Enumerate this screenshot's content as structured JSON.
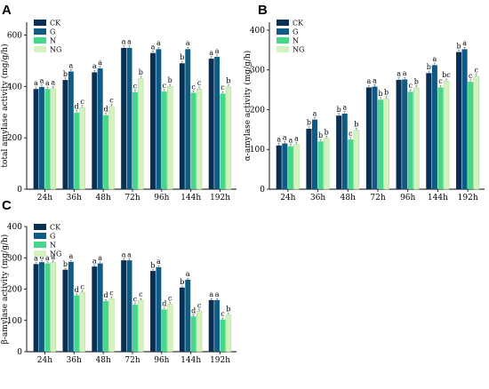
{
  "figure": {
    "colors": [
      "#0a2f55",
      "#0e5c85",
      "#45d88a",
      "#d3f2bd"
    ],
    "legend": [
      "CK",
      "G",
      "N",
      "NG"
    ]
  },
  "chart_data": [
    {
      "type": "bar",
      "panel": "A",
      "title": "",
      "xlabel": "",
      "ylabel": "total amylase activity (mg/g/h)",
      "ylim": [
        0,
        650
      ],
      "yticks": [
        0,
        200,
        400,
        600
      ],
      "legend_position": "top-left",
      "categories": [
        "24h",
        "36h",
        "48h",
        "72h",
        "96h",
        "144h",
        "192h"
      ],
      "series": [
        {
          "name": "CK",
          "values": [
            390,
            425,
            455,
            550,
            530,
            490,
            508
          ],
          "labels": [
            "a",
            "b",
            "a",
            "a",
            "a",
            "b",
            "a"
          ]
        },
        {
          "name": "G",
          "values": [
            398,
            458,
            470,
            550,
            545,
            545,
            515
          ],
          "labels": [
            "a",
            "a",
            "a",
            "a",
            "a",
            "a",
            "a"
          ]
        },
        {
          "name": "N",
          "values": [
            390,
            298,
            288,
            378,
            380,
            375,
            372
          ],
          "labels": [
            "a",
            "d",
            "d",
            "c",
            "c",
            "c",
            "c"
          ]
        },
        {
          "name": "NG",
          "values": [
            392,
            318,
            322,
            432,
            400,
            390,
            398
          ],
          "labels": [
            "a",
            "c",
            "c",
            "b",
            "b",
            "c",
            "b"
          ]
        }
      ]
    },
    {
      "type": "bar",
      "panel": "B",
      "title": "",
      "xlabel": "",
      "ylabel": "α-amylase activity (mg/g/h)",
      "ylim": [
        0,
        420
      ],
      "yticks": [
        0,
        100,
        200,
        300,
        400
      ],
      "legend_position": "top-left",
      "categories": [
        "24h",
        "36h",
        "48h",
        "72h",
        "96h",
        "144h",
        "192h"
      ],
      "series": [
        {
          "name": "CK",
          "values": [
            110,
            152,
            185,
            256,
            275,
            292,
            345
          ],
          "labels": [
            "a",
            "b",
            "b",
            "a",
            "a",
            "b",
            "b"
          ]
        },
        {
          "name": "G",
          "values": [
            115,
            175,
            190,
            258,
            276,
            312,
            352
          ],
          "labels": [
            "a",
            "a",
            "a",
            "a",
            "a",
            "a",
            "a"
          ]
        },
        {
          "name": "N",
          "values": [
            108,
            120,
            125,
            225,
            245,
            256,
            270
          ],
          "labels": [
            "a",
            "b",
            "c",
            "b",
            "c",
            "c",
            "c"
          ]
        },
        {
          "name": "NG",
          "values": [
            112,
            128,
            148,
            228,
            255,
            272,
            284
          ],
          "labels": [
            "a",
            "b",
            "b",
            "b",
            "b",
            "bc",
            "c"
          ]
        }
      ]
    },
    {
      "type": "bar",
      "panel": "C",
      "title": "",
      "xlabel": "",
      "ylabel": "β-amylase activity (mg/g/h)",
      "ylim": [
        0,
        400
      ],
      "yticks": [
        0,
        100,
        200,
        300,
        400
      ],
      "legend_position": "top-left",
      "categories": [
        "24h",
        "36h",
        "48h",
        "72h",
        "96h",
        "144h",
        "192h"
      ],
      "series": [
        {
          "name": "CK",
          "values": [
            280,
            262,
            272,
            292,
            258,
            205,
            165
          ],
          "labels": [
            "a",
            "b",
            "a",
            "a",
            "b",
            "b",
            "a"
          ]
        },
        {
          "name": "G",
          "values": [
            286,
            287,
            282,
            292,
            270,
            230,
            165
          ],
          "labels": [
            "a",
            "a",
            "a",
            "a",
            "a",
            "a",
            "a"
          ]
        },
        {
          "name": "N",
          "values": [
            282,
            180,
            162,
            150,
            135,
            113,
            103
          ],
          "labels": [
            "a",
            "d",
            "d",
            "c",
            "d",
            "d",
            "c"
          ]
        },
        {
          "name": "NG",
          "values": [
            285,
            190,
            170,
            165,
            152,
            130,
            118
          ],
          "labels": [
            "a",
            "c",
            "c",
            "c",
            "c",
            "c",
            "b"
          ]
        }
      ]
    }
  ]
}
